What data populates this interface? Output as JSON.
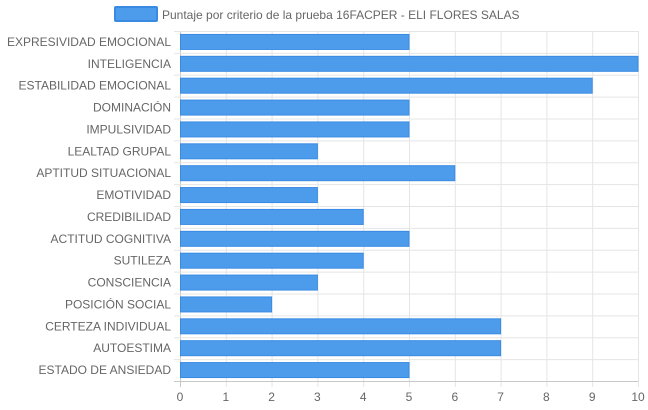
{
  "chart_data": {
    "type": "bar",
    "orientation": "horizontal",
    "legend_position": "top",
    "grid": true,
    "xlim": [
      0,
      10
    ],
    "x_ticks": [
      "0",
      "1",
      "2",
      "3",
      "4",
      "5",
      "6",
      "7",
      "8",
      "9",
      "10"
    ],
    "categories": [
      "EXPRESIVIDAD EMOCIONAL",
      "INTELIGENCIA",
      "ESTABILIDAD EMOCIONAL",
      "DOMINACIÓN",
      "IMPULSIVIDAD",
      "LEALTAD GRUPAL",
      "APTITUD SITUACIONAL",
      "EMOTIVIDAD",
      "CREDIBILIDAD",
      "ACTITUD COGNITIVA",
      "SUTILEZA",
      "CONSCIENCIA",
      "POSICIÓN SOCIAL",
      "CERTEZA INDIVIDUAL",
      "AUTOESTIMA",
      "ESTADO DE ANSIEDAD"
    ],
    "series": [
      {
        "name": "Puntaje por criterio de la prueba 16FACPER - ELI FLORES SALAS",
        "values": [
          5,
          10,
          9,
          5,
          5,
          3,
          6,
          3,
          4,
          5,
          4,
          3,
          2,
          7,
          7,
          5
        ],
        "color": "#4d9cec",
        "border_color": "#3a8ae3"
      }
    ],
    "colors": {
      "grid": "#e5e5e5",
      "axis": "#c8c8c8",
      "text": "#666666"
    }
  }
}
